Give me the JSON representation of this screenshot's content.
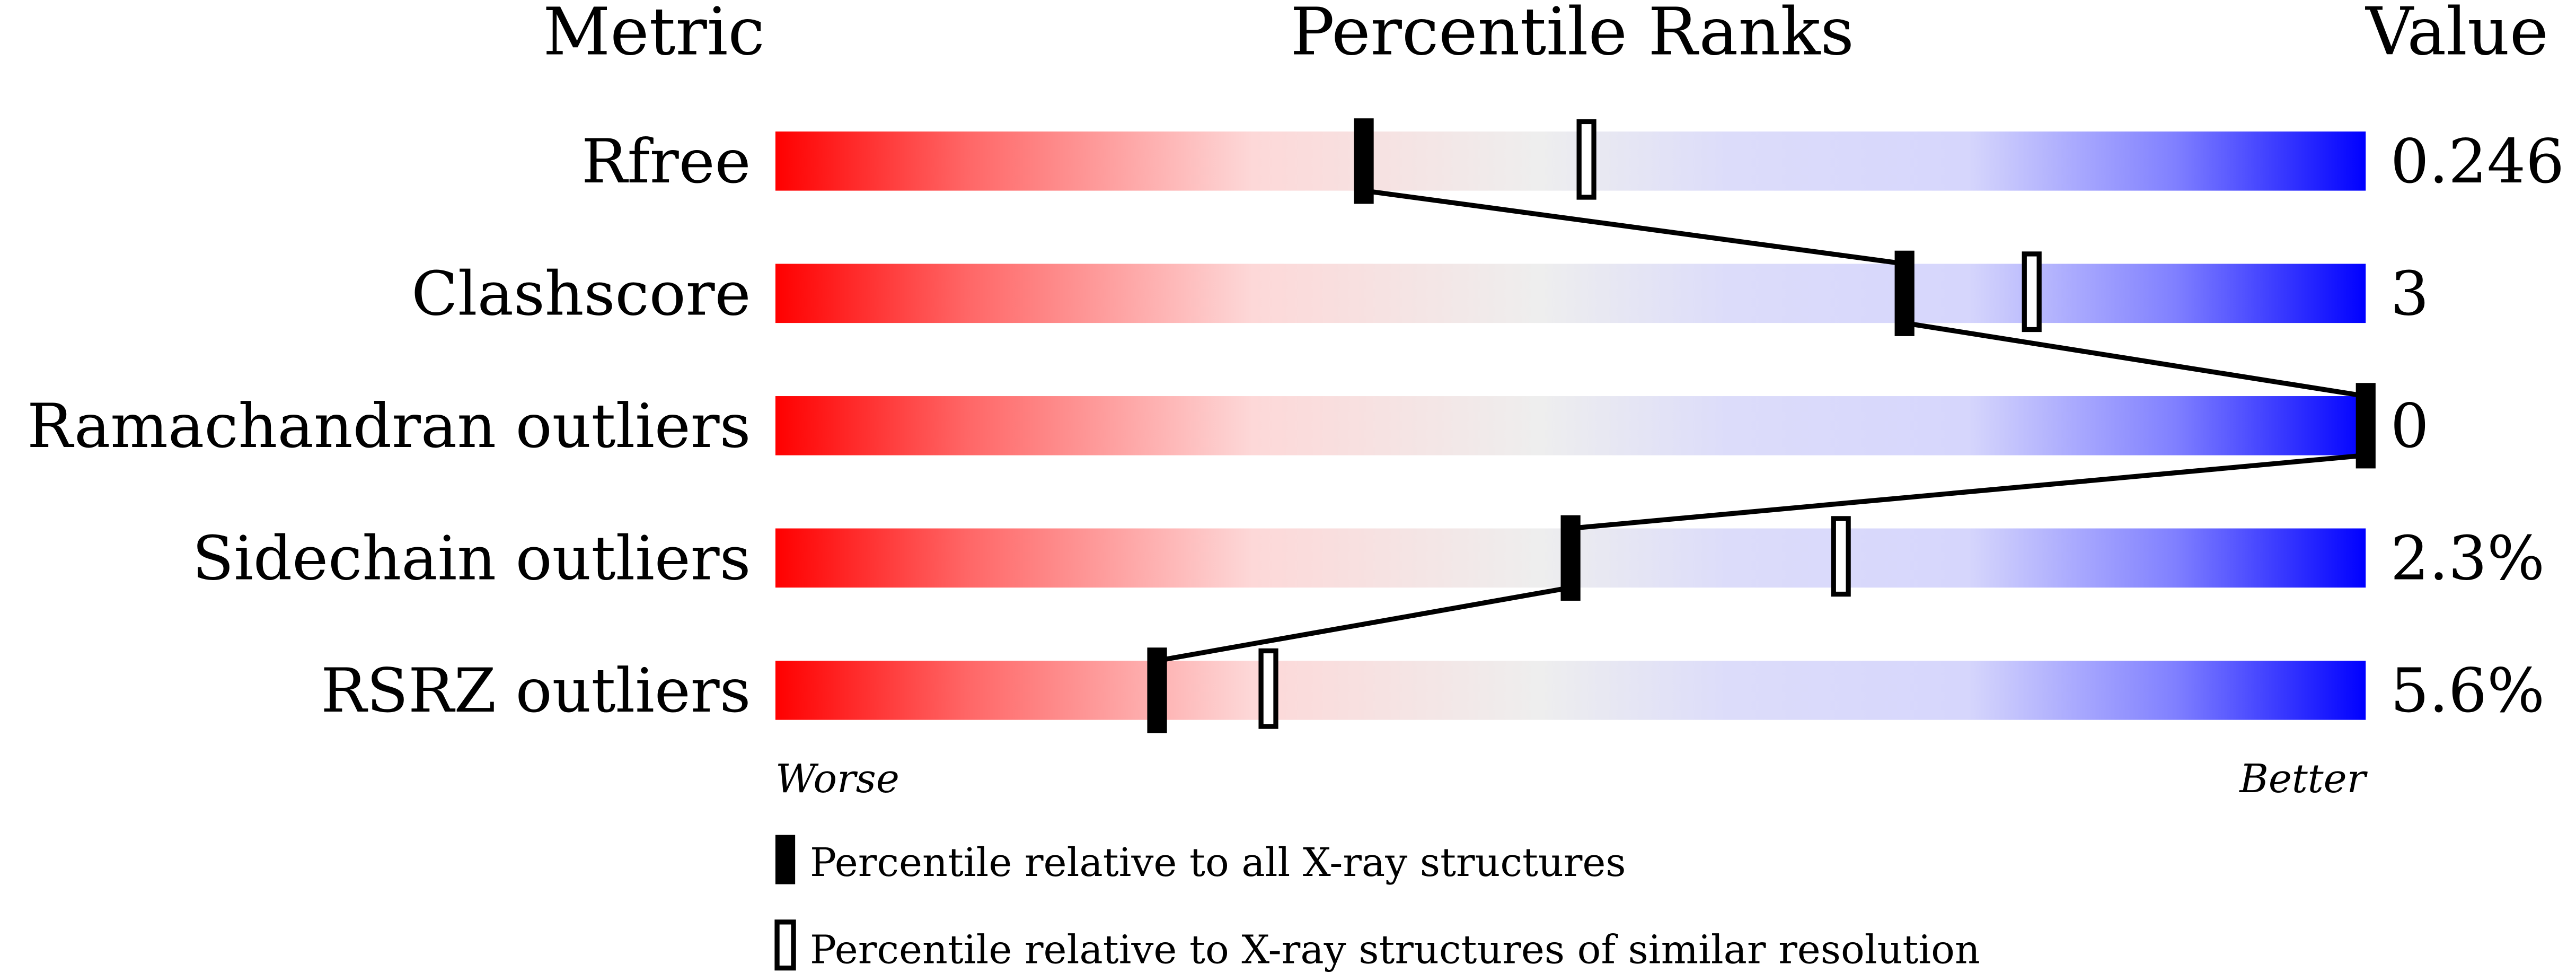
{
  "chart_data": {
    "type": "percentile-bar",
    "headers": {
      "metric": "Metric",
      "ranks": "Percentile Ranks",
      "value": "Value"
    },
    "xlim": [
      0,
      100
    ],
    "axis_labels": {
      "left": "Worse",
      "right": "Better"
    },
    "metrics": [
      {
        "name": "Rfree",
        "value": "0.246",
        "percentile_all": 37,
        "percentile_similar": 51
      },
      {
        "name": "Clashscore",
        "value": "3",
        "percentile_all": 71,
        "percentile_similar": 79
      },
      {
        "name": "Ramachandran outliers",
        "value": "0",
        "percentile_all": 100,
        "percentile_similar": 100
      },
      {
        "name": "Sidechain outliers",
        "value": "2.3%",
        "percentile_all": 50,
        "percentile_similar": 67
      },
      {
        "name": "RSRZ outliers",
        "value": "5.6%",
        "percentile_all": 24,
        "percentile_similar": 31
      }
    ],
    "legend": {
      "all": "Percentile relative to all X-ray structures",
      "similar": "Percentile relative to X-ray structures of similar resolution"
    },
    "colors": {
      "worse": "#ff0000",
      "middle": "#eeeeee",
      "better": "#0000ff"
    }
  }
}
